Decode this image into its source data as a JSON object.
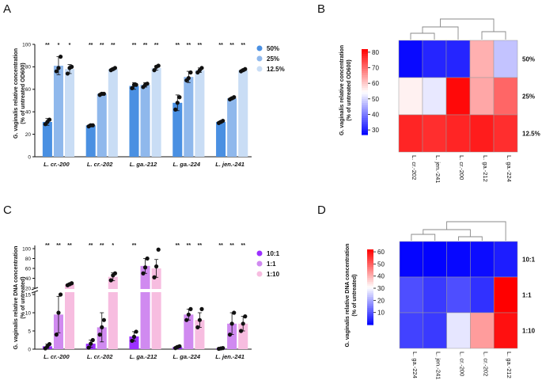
{
  "panels": {
    "A": {
      "letter": "A"
    },
    "B": {
      "letter": "B"
    },
    "C": {
      "letter": "C"
    },
    "D": {
      "letter": "D"
    }
  },
  "colors": {
    "a_series": [
      "#4a90e2",
      "#8fb8ec",
      "#c9ddf5"
    ],
    "c_series": [
      "#9b30ff",
      "#d08af0",
      "#f7bde0"
    ],
    "dot": "#111111"
  },
  "chart_data": [
    {
      "id": "A",
      "type": "bar",
      "ylabel_line1": "G. vaginalis relative concentration",
      "ylabel_line2": "(% of untreated OD600)",
      "ylim": [
        0,
        100
      ],
      "yticks": [
        "0",
        "20",
        "40",
        "60",
        "80",
        "100"
      ],
      "categories": [
        "L. cr.-200",
        "L. cr.-202",
        "L. ga.-212",
        "L. ga.-224",
        "L. jen.-241"
      ],
      "series": [
        {
          "name": "50%",
          "values": [
            31,
            28,
            63,
            48,
            31
          ],
          "sd": [
            3,
            1,
            3,
            7,
            1
          ],
          "points": [
            [
              29,
              31,
              33
            ],
            [
              27,
              28,
              28
            ],
            [
              61,
              64,
              64
            ],
            [
              42,
              48,
              53
            ],
            [
              30,
              31,
              32
            ]
          ]
        },
        {
          "name": "25%",
          "values": [
            81,
            56,
            64,
            71,
            52
          ],
          "sd": [
            8,
            1,
            2,
            5,
            1
          ],
          "points": [
            [
              76,
              79,
              89
            ],
            [
              55,
              56,
              56
            ],
            [
              62,
              64,
              65
            ],
            [
              68,
              70,
              75
            ],
            [
              51,
              52,
              53
            ]
          ]
        },
        {
          "name": "12.5%",
          "values": [
            78,
            78,
            79,
            77,
            77
          ],
          "sd": [
            4,
            1,
            2,
            2,
            1
          ],
          "points": [
            [
              74,
              79,
              80
            ],
            [
              77,
              78,
              79
            ],
            [
              77,
              80,
              81
            ],
            [
              75,
              77,
              79
            ],
            [
              76,
              77,
              78
            ]
          ]
        }
      ],
      "significance": [
        [
          "**",
          "*",
          "*"
        ],
        [
          "**",
          "**",
          "**"
        ],
        [
          "**",
          "**",
          "**"
        ],
        [
          "**",
          "**",
          "**"
        ],
        [
          "**",
          "**",
          "**"
        ]
      ]
    },
    {
      "id": "B",
      "type": "heatmap",
      "ylabel_line1": "G. vaginalis relative concentration",
      "ylabel_line2": "(% of untreated OD600)",
      "columns": [
        "L. cr.-202",
        "L. jen.-241",
        "L. cr.-200",
        "L. ga.-212",
        "L. ga.-224"
      ],
      "rows": [
        "50%",
        "25%",
        "12.5%"
      ],
      "values": [
        [
          28,
          31,
          31,
          63,
          48
        ],
        [
          56,
          52,
          81,
          64,
          71
        ],
        [
          78,
          77,
          78,
          79,
          77
        ]
      ],
      "colorbar_range": [
        27,
        82
      ],
      "colorbar_ticks": [
        "30",
        "40",
        "50",
        "60",
        "70",
        "80"
      ],
      "colormap": [
        "#0000ff",
        "#ffffff",
        "#ff0000"
      ]
    },
    {
      "id": "C",
      "type": "bar",
      "ylabel_line1": "G. vaginalis relative DNA concentration",
      "ylabel_line2": "(% of untreated)",
      "axis_break": true,
      "lower_ylim": [
        0,
        15
      ],
      "upper_ylim": [
        20,
        100
      ],
      "yticks_lower": [
        "0",
        "5",
        "10",
        "15"
      ],
      "yticks_upper": [
        "20",
        "40",
        "60",
        "80",
        "100"
      ],
      "categories": [
        "L. cr.-200",
        "L. cr.-202",
        "L. ga.-212",
        "L. ga.-224",
        "L. jen.-241"
      ],
      "series": [
        {
          "name": "10:1",
          "values": [
            0.8,
            1.5,
            3.5,
            0.6,
            0.2
          ],
          "sd": [
            0.6,
            1.0,
            1.3,
            0.3,
            0.1
          ],
          "points": [
            [
              0.2,
              0.8,
              1.4
            ],
            [
              0.4,
              1.5,
              2.5
            ],
            [
              2.3,
              3.4,
              4.8
            ],
            [
              0.3,
              0.6,
              0.8
            ],
            [
              0.1,
              0.2,
              0.3
            ]
          ]
        },
        {
          "name": "1:1",
          "values": [
            9.5,
            6.0,
            65,
            9.5,
            7.0
          ],
          "sd": [
            5,
            4,
            15,
            1.5,
            3
          ],
          "points": [
            [
              4,
              10,
              15
            ],
            [
              4,
              6,
              8
            ],
            [
              50,
              62,
              80
            ],
            [
              8,
              9.5,
              11
            ],
            [
              4,
              7,
              10
            ]
          ]
        },
        {
          "name": "1:10",
          "values": [
            28,
            43,
            60,
            8.0,
            7.0
          ],
          "sd": [
            2,
            8,
            18,
            2,
            2
          ],
          "points": [
            [
              26,
              28,
              30
            ],
            [
              36,
              46,
              50
            ],
            [
              42,
              64,
              98
            ],
            [
              6,
              8,
              11
            ],
            [
              5,
              7,
              9
            ]
          ]
        }
      ],
      "significance": [
        [
          "**",
          "**",
          "**"
        ],
        [
          "**",
          "**",
          "*"
        ],
        [
          "**",
          "",
          ""
        ],
        [
          "**",
          "**",
          "**"
        ],
        [
          "**",
          "**",
          "**"
        ]
      ]
    },
    {
      "id": "D",
      "type": "heatmap",
      "ylabel_line1": "G. vaginalis relative DNA concentration",
      "ylabel_line2": "(% of untreated)",
      "columns": [
        "L. ga.-224",
        "L. jen.-241",
        "L. cr.-200",
        "L. cr.-202",
        "L. ga.-212"
      ],
      "rows": [
        "10:1",
        "1:1",
        "1:10"
      ],
      "values": [
        [
          0.6,
          0.2,
          0.8,
          1.5,
          3.5
        ],
        [
          9.5,
          7.0,
          9.5,
          6.0,
          65
        ],
        [
          8.0,
          7.0,
          28,
          43,
          60
        ]
      ],
      "colorbar_range": [
        0,
        62
      ],
      "colorbar_ticks": [
        "10",
        "20",
        "30",
        "40",
        "50",
        "60"
      ],
      "colormap": [
        "#0000ff",
        "#ffffff",
        "#ff0000"
      ]
    }
  ]
}
